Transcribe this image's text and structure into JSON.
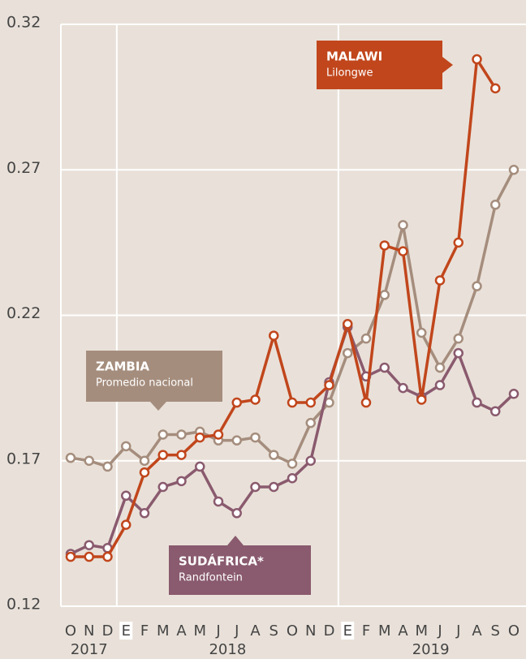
{
  "chart_data": {
    "type": "line",
    "categories": [
      "O",
      "N",
      "D",
      "E",
      "F",
      "M",
      "A",
      "M",
      "J",
      "J",
      "A",
      "S",
      "O",
      "N",
      "D",
      "E",
      "F",
      "M",
      "A",
      "M",
      "J",
      "J",
      "A",
      "S",
      "O"
    ],
    "year_labels": [
      "2017",
      "2018",
      "2019"
    ],
    "ylim": [
      0.12,
      0.32
    ],
    "yticks": [
      0.12,
      0.17,
      0.22,
      0.27,
      0.32
    ],
    "grid": true,
    "series": [
      {
        "name": "ZAMBIA",
        "subtitle": "Promedio nacional",
        "color": "#a58d7d",
        "values": [
          0.171,
          0.17,
          0.168,
          0.175,
          0.17,
          0.179,
          0.179,
          0.18,
          0.177,
          0.177,
          0.178,
          0.172,
          0.169,
          0.183,
          0.19,
          0.207,
          0.212,
          0.227,
          0.251,
          0.214,
          0.202,
          0.212,
          0.23,
          0.258,
          0.27
        ]
      },
      {
        "name": "SUDÁFRICA*",
        "subtitle": "Randfontein",
        "color": "#8a5a6e",
        "values": [
          0.138,
          0.141,
          0.14,
          0.158,
          0.152,
          0.161,
          0.163,
          0.168,
          0.156,
          0.152,
          0.161,
          0.161,
          0.164,
          0.17,
          0.197,
          0.216,
          0.199,
          0.202,
          0.195,
          0.192,
          0.196,
          0.207,
          0.19,
          0.187,
          0.193
        ]
      },
      {
        "name": "MALAWI",
        "subtitle": "Lilongwe",
        "color": "#c1461c",
        "values": [
          0.137,
          0.137,
          0.137,
          0.148,
          0.166,
          0.172,
          0.172,
          0.178,
          0.179,
          0.19,
          0.191,
          0.213,
          0.19,
          0.19,
          0.196,
          0.217,
          0.19,
          0.244,
          0.242,
          0.191,
          0.232,
          0.245,
          0.308,
          0.298,
          null
        ]
      }
    ]
  }
}
